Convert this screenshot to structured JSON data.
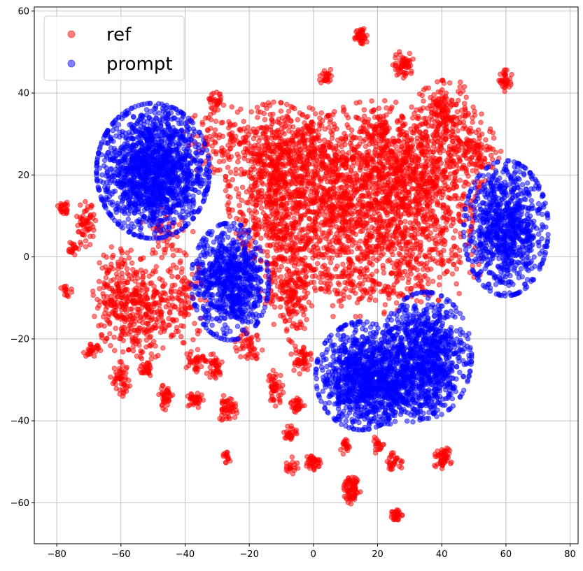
{
  "chart_data": {
    "type": "scatter",
    "title": "",
    "xlabel": "",
    "ylabel": "",
    "xlim": [
      -87,
      82.5
    ],
    "ylim": [
      -70,
      61
    ],
    "grid": true,
    "xticks": [
      -80,
      -60,
      -40,
      -20,
      0,
      20,
      40,
      60,
      80
    ],
    "yticks": [
      -60,
      -40,
      -20,
      0,
      20,
      40,
      60
    ],
    "xtick_labels": [
      "−80",
      "−60",
      "−40",
      "−20",
      "0",
      "20",
      "40",
      "60",
      "80"
    ],
    "ytick_labels": [
      "−60",
      "−40",
      "−20",
      "0",
      "20",
      "40",
      "60"
    ],
    "legend": {
      "placement": "top-left",
      "entries": [
        "ref",
        "prompt"
      ]
    },
    "marker_alpha": 0.5,
    "series": [
      {
        "name": "ref",
        "color": "#ff0000",
        "note": "dense point clouds approximated as gaussian clusters [center_x, center_y, spread_x, spread_y, count]",
        "clusters": [
          [
            -12,
            18,
            7,
            9,
            700
          ],
          [
            8,
            15,
            9,
            9,
            700
          ],
          [
            28,
            12,
            10,
            9,
            700
          ],
          [
            20,
            25,
            10,
            6,
            300
          ],
          [
            0,
            5,
            10,
            6,
            250
          ],
          [
            42,
            30,
            6,
            6,
            250
          ],
          [
            35,
            20,
            8,
            5,
            200
          ],
          [
            -5,
            28,
            6,
            4,
            120
          ],
          [
            -28,
            28,
            6,
            4,
            120
          ],
          [
            10,
            -8,
            12,
            3,
            150
          ],
          [
            35,
            -2,
            8,
            4,
            120
          ],
          [
            -8,
            -5,
            4,
            6,
            120
          ],
          [
            -60,
            -10,
            4,
            6,
            250
          ],
          [
            -52,
            -14,
            4,
            5,
            200
          ],
          [
            -40,
            -10,
            3,
            5,
            100
          ],
          [
            -46,
            5,
            4,
            4,
            60
          ],
          [
            15,
            54,
            1,
            1,
            40
          ],
          [
            28,
            47,
            1.5,
            1.5,
            60
          ],
          [
            4,
            44,
            1,
            1,
            30
          ],
          [
            60,
            43,
            1,
            1.2,
            40
          ],
          [
            40,
            36,
            2,
            2,
            60
          ],
          [
            -30,
            38,
            1.2,
            1,
            30
          ],
          [
            -78,
            12,
            0.8,
            0.8,
            25
          ],
          [
            -75,
            2,
            0.8,
            0.8,
            20
          ],
          [
            -71,
            8,
            1.5,
            2.5,
            60
          ],
          [
            -69,
            -23,
            1.2,
            0.8,
            30
          ],
          [
            -77,
            -8,
            0.8,
            0.8,
            15
          ],
          [
            -60,
            -30,
            1.5,
            2,
            50
          ],
          [
            -52,
            -28,
            1,
            1,
            30
          ],
          [
            -46,
            -34,
            1,
            1.5,
            40
          ],
          [
            -37,
            -35,
            1.2,
            1,
            40
          ],
          [
            -27,
            -37,
            1.5,
            1.5,
            50
          ],
          [
            -27,
            -49,
            0.6,
            0.6,
            15
          ],
          [
            -12,
            -32,
            1.2,
            2,
            50
          ],
          [
            -5,
            -36,
            1,
            1,
            30
          ],
          [
            -7,
            -43,
            1,
            1,
            30
          ],
          [
            -7,
            -51,
            1,
            1,
            20
          ],
          [
            0,
            -50,
            1.2,
            1,
            40
          ],
          [
            12,
            -57,
            1.2,
            1.5,
            80
          ],
          [
            10,
            -46,
            1,
            1,
            20
          ],
          [
            25,
            -50,
            1.5,
            1,
            30
          ],
          [
            26,
            -63,
            0.8,
            0.8,
            30
          ],
          [
            40,
            -49,
            1.5,
            1.2,
            50
          ],
          [
            20,
            -46,
            1,
            1,
            20
          ],
          [
            -20,
            -21,
            2,
            2,
            50
          ],
          [
            -37,
            -25,
            1.5,
            1.5,
            40
          ],
          [
            -4,
            -25,
            1.5,
            2,
            50
          ],
          [
            -31,
            -27,
            1.5,
            1.5,
            40
          ],
          [
            52,
            25,
            3,
            3,
            80
          ],
          [
            22,
            32,
            3,
            2,
            60
          ],
          [
            -6,
            -10,
            2,
            5,
            80
          ]
        ]
      },
      {
        "name": "prompt",
        "color": "#0000ff",
        "note": "dense point clouds approximated as gaussian clusters [center_x, center_y, spread_x, spread_y, count]",
        "clusters": [
          [
            -50,
            21,
            8,
            7.5,
            1600
          ],
          [
            -26,
            -6,
            5.5,
            6.5,
            800
          ],
          [
            60,
            7,
            6,
            7.5,
            900
          ],
          [
            15,
            -29,
            6.5,
            6,
            900
          ],
          [
            35,
            -24,
            6.5,
            7,
            900
          ],
          [
            25,
            -32,
            8,
            4,
            400
          ]
        ]
      }
    ]
  }
}
